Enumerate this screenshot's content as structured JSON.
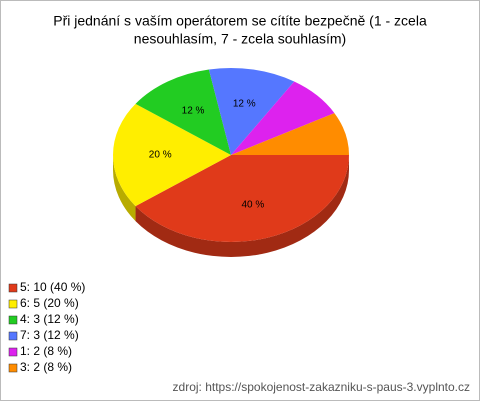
{
  "chart_data": {
    "type": "pie3d",
    "title": [
      "Při jednání s vaším operátorem se cítíte bezpečně (1 - zcela",
      "nesouhlasím, 7 - zcela souhlasím)"
    ],
    "categories": [
      "5: 10 (40 %)",
      "6: 5 (20 %)",
      "4: 3 (12 %)",
      "7: 3 (12 %)",
      "1: 2 (8 %)",
      "3: 2 (8 %)"
    ],
    "values": [
      40,
      20,
      12,
      12,
      8,
      8
    ],
    "value_labels": [
      "40 %",
      "20 %",
      "12 %",
      "12 %",
      null,
      null
    ],
    "colors": [
      "#e03a1a",
      "#ffee00",
      "#22cc22",
      "#5577ff",
      "#dd22ee",
      "#ff8c00"
    ],
    "legend": "bottom-left",
    "source": "zdroj: https://spokojenost-zakazniku-s-paus-3.vyplnto.cz"
  }
}
